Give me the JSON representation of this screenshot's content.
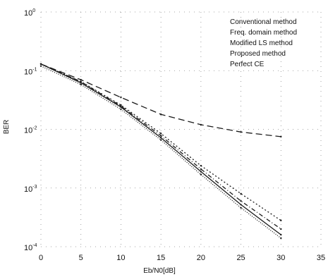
{
  "chart_data": {
    "type": "line",
    "title": "",
    "xlabel": "Eb/N0[dB]",
    "ylabel": "BER",
    "xlim": [
      0,
      35
    ],
    "ylim_exp": [
      -4,
      0
    ],
    "y_scale": "log",
    "grid": true,
    "legend_position": "top-right",
    "x_ticks": [
      "0",
      "5",
      "10",
      "15",
      "20",
      "25",
      "30",
      "35"
    ],
    "y_ticks": [
      {
        "base": "10",
        "exp": "0"
      },
      {
        "base": "10",
        "exp": "-1"
      },
      {
        "base": "10",
        "exp": "-2"
      },
      {
        "base": "10",
        "exp": "-3"
      },
      {
        "base": "10",
        "exp": "-4"
      }
    ],
    "legend": [
      "Conventional method",
      "Freq. domain method",
      "Modified LS method",
      "Proposed method",
      "Perfect CE"
    ],
    "series": [
      {
        "x": [
          0,
          5,
          10,
          15,
          20,
          25,
          30
        ],
        "y": [
          0.13,
          0.07,
          0.035,
          0.018,
          0.012,
          0.009,
          0.0075
        ],
        "dash": "9 5"
      },
      {
        "x": [
          0,
          5,
          10,
          15,
          20,
          25,
          30
        ],
        "y": [
          0.13,
          0.065,
          0.026,
          0.0085,
          0.0024,
          0.0008,
          0.00028
        ],
        "dash": "2 3"
      },
      {
        "x": [
          0,
          5,
          10,
          15,
          20,
          25,
          30
        ],
        "y": [
          0.13,
          0.065,
          0.025,
          0.0078,
          0.0021,
          0.0006,
          0.0002
        ],
        "dash": "6 3 1 3"
      },
      {
        "x": [
          0,
          5,
          10,
          15,
          20,
          25,
          30
        ],
        "y": [
          0.13,
          0.062,
          0.024,
          0.0072,
          0.0019,
          0.00052,
          0.00016
        ],
        "dash": "none"
      },
      {
        "x": [
          0,
          5,
          10,
          15,
          20,
          25,
          30
        ],
        "y": [
          0.12,
          0.058,
          0.022,
          0.0066,
          0.0017,
          0.00046,
          0.00014
        ],
        "dash": "1 2"
      }
    ]
  }
}
